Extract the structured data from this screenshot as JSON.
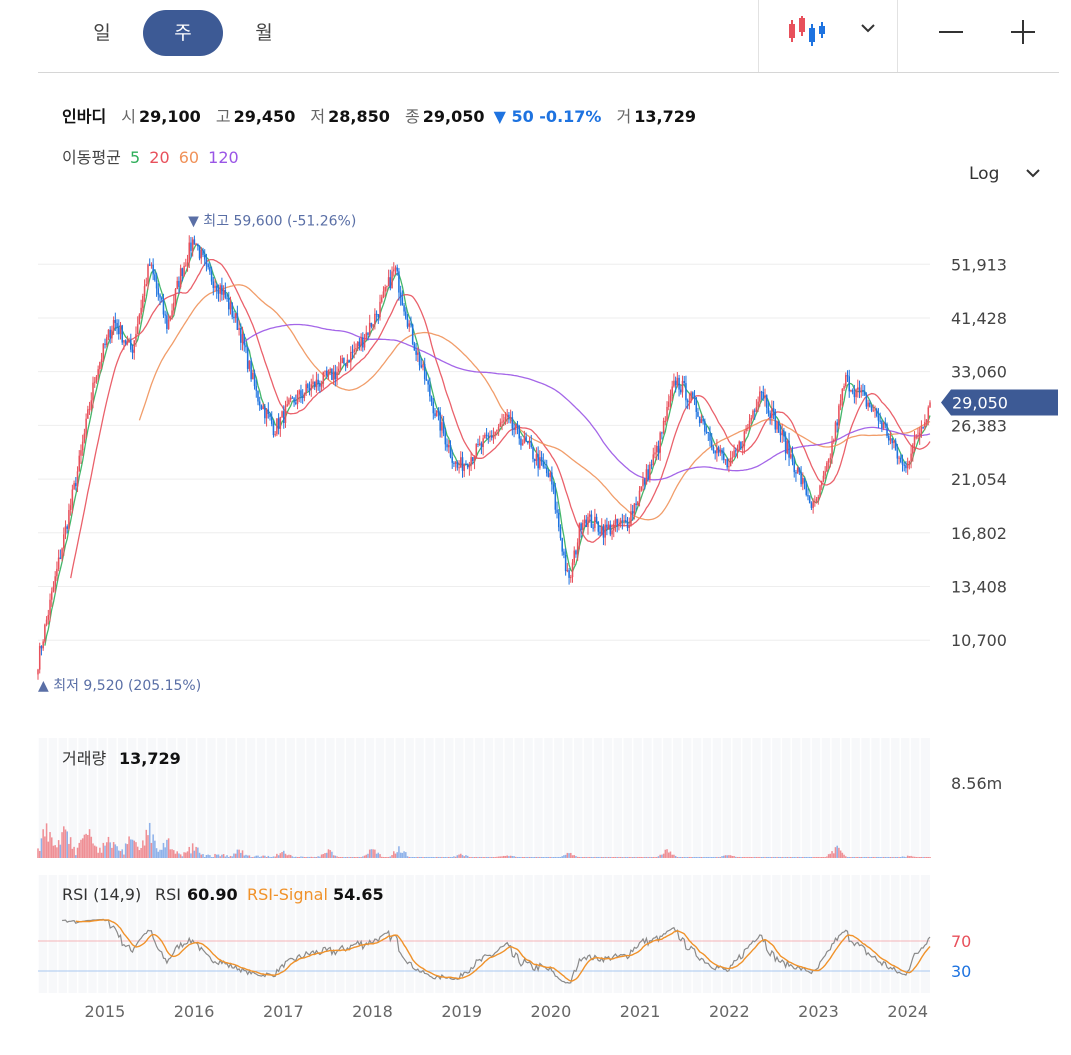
{
  "toolbar": {
    "periods": [
      {
        "label": "일",
        "active": false
      },
      {
        "label": "주",
        "active": true
      },
      {
        "label": "월",
        "active": false
      }
    ],
    "chart_type_icon": "candlestick-icon",
    "dropdown_icon": "chevron-down-icon",
    "zoom_out_icon": "minus-icon",
    "zoom_in_icon": "plus-icon"
  },
  "quote": {
    "name": "인바디",
    "open_label": "시",
    "open": "29,100",
    "high_label": "고",
    "high": "29,450",
    "low_label": "저",
    "low": "28,850",
    "close_label": "종",
    "close": "29,050",
    "change": "▼ 50 -0.17%",
    "volume_label": "거",
    "volume": "13,729"
  },
  "moving_average": {
    "label": "이동평균",
    "periods": [
      {
        "value": "5",
        "color": "#2fae5a"
      },
      {
        "value": "20",
        "color": "#e8505b"
      },
      {
        "value": "60",
        "color": "#f0925a"
      },
      {
        "value": "120",
        "color": "#9a55e6"
      }
    ]
  },
  "scale_selector": "Log",
  "colors": {
    "up": "#e8505b",
    "down": "#1e73e0",
    "accent": "#3d5a95",
    "rsi": "#8a8a8a",
    "rsi_signal": "#f0922a"
  },
  "chart_data": [
    {
      "type": "candlestick",
      "scale": "log",
      "ylim": [
        8500,
        62000
      ],
      "y_ticks": [
        "51,913",
        "41,428",
        "33,060",
        "26,383",
        "21,054",
        "16,802",
        "13,408",
        "10,700"
      ],
      "y_tick_values": [
        51913,
        41428,
        33060,
        26383,
        21054,
        16802,
        13408,
        10700
      ],
      "x_ticks": [
        "2015",
        "2016",
        "2017",
        "2018",
        "2019",
        "2020",
        "2021",
        "2022",
        "2023",
        "2024"
      ],
      "x_range": [
        2014.25,
        2024.25
      ],
      "current_price": "29,050",
      "current_price_value": 29050,
      "max_label": "▼ 최고 59,600 (-51.26%)",
      "max_value": 59600,
      "max_x": 2016.0,
      "min_label": "▲ 최저 9,520 (205.15%)",
      "min_value": 9520,
      "min_x": 2014.28,
      "price_path": [
        [
          2014.25,
          9800
        ],
        [
          2014.45,
          14000
        ],
        [
          2014.7,
          22000
        ],
        [
          2014.9,
          33000
        ],
        [
          2015.1,
          41000
        ],
        [
          2015.3,
          36000
        ],
        [
          2015.5,
          52000
        ],
        [
          2015.7,
          40000
        ],
        [
          2015.85,
          50000
        ],
        [
          2016.0,
          58000
        ],
        [
          2016.15,
          50000
        ],
        [
          2016.3,
          47000
        ],
        [
          2016.5,
          40000
        ],
        [
          2016.7,
          30000
        ],
        [
          2016.9,
          26000
        ],
        [
          2017.1,
          29000
        ],
        [
          2017.3,
          31000
        ],
        [
          2017.6,
          33000
        ],
        [
          2017.9,
          38000
        ],
        [
          2018.1,
          44000
        ],
        [
          2018.25,
          51000
        ],
        [
          2018.45,
          38000
        ],
        [
          2018.7,
          28000
        ],
        [
          2018.95,
          22000
        ],
        [
          2019.2,
          24000
        ],
        [
          2019.5,
          27000
        ],
        [
          2019.75,
          24000
        ],
        [
          2020.0,
          21000
        ],
        [
          2020.2,
          13500
        ],
        [
          2020.35,
          18000
        ],
        [
          2020.6,
          17000
        ],
        [
          2020.85,
          17500
        ],
        [
          2021.0,
          20000
        ],
        [
          2021.2,
          24000
        ],
        [
          2021.4,
          32000
        ],
        [
          2021.6,
          29000
        ],
        [
          2021.85,
          24000
        ],
        [
          2022.0,
          22000
        ],
        [
          2022.2,
          26000
        ],
        [
          2022.35,
          31000
        ],
        [
          2022.55,
          26000
        ],
        [
          2022.75,
          22000
        ],
        [
          2022.95,
          18500
        ],
        [
          2023.1,
          22000
        ],
        [
          2023.3,
          32000
        ],
        [
          2023.55,
          29000
        ],
        [
          2023.75,
          26000
        ],
        [
          2023.95,
          22000
        ],
        [
          2024.1,
          25000
        ],
        [
          2024.25,
          29050
        ]
      ]
    },
    {
      "type": "bar",
      "title": "거래량",
      "current": "13,729",
      "max_tick": "8.56m",
      "ylim": [
        0,
        8560000
      ],
      "peaks": [
        [
          2014.35,
          4500000
        ],
        [
          2014.55,
          4000000
        ],
        [
          2014.8,
          4600000
        ],
        [
          2015.05,
          3100000
        ],
        [
          2015.3,
          2700000
        ],
        [
          2015.5,
          4900000
        ],
        [
          2015.7,
          2100000
        ],
        [
          2016.0,
          1600000
        ],
        [
          2016.5,
          900000
        ],
        [
          2017.0,
          700000
        ],
        [
          2017.5,
          1300000
        ],
        [
          2018.0,
          1500000
        ],
        [
          2018.3,
          1800000
        ],
        [
          2019.0,
          600000
        ],
        [
          2019.5,
          500000
        ],
        [
          2020.2,
          800000
        ],
        [
          2021.3,
          1300000
        ],
        [
          2022.0,
          500000
        ],
        [
          2023.2,
          1900000
        ],
        [
          2024.0,
          300000
        ]
      ]
    },
    {
      "type": "line",
      "title": "RSI (14,9)",
      "rsi_label": "RSI",
      "rsi_value": "60.90",
      "signal_label": "RSI-Signal",
      "signal_value": "54.65",
      "levels": [
        "70",
        "30"
      ],
      "level_values": [
        70,
        30
      ],
      "ylim": [
        0,
        100
      ]
    }
  ]
}
